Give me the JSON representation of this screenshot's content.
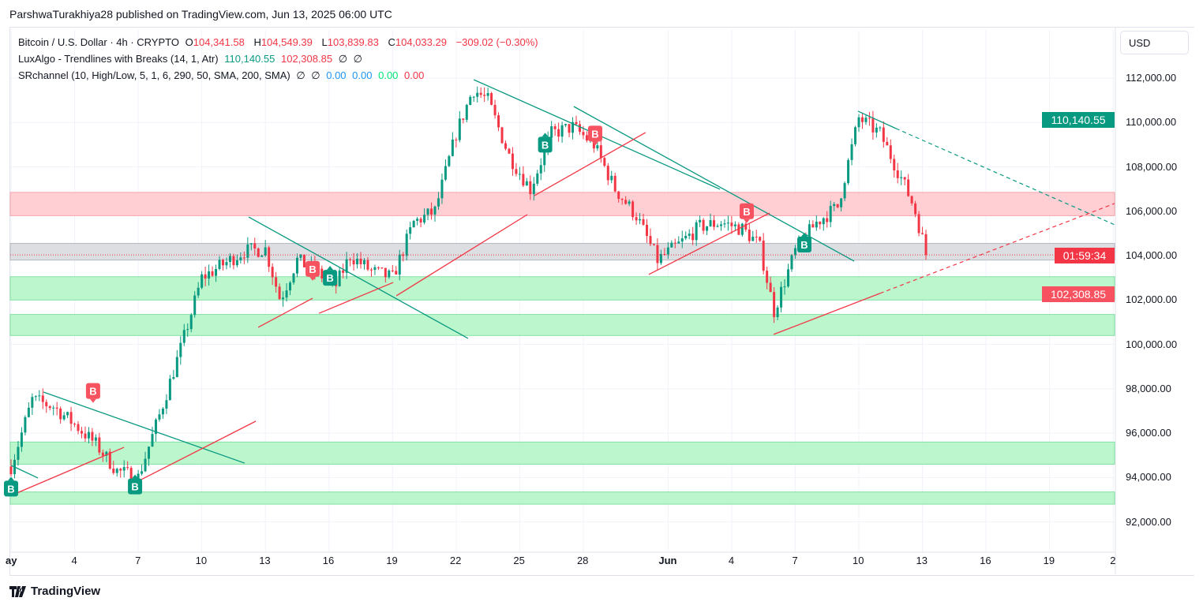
{
  "publisher_line": "ParshwaTurakhiya28 published on TradingView.com, Jun 13, 2025 06:00 UTC",
  "legend": {
    "symbol": "Bitcoin / U.S. Dollar · 4h · CRYPTO",
    "o_label": "O",
    "o": "104,341.58",
    "h_label": "H",
    "h": "104,549.39",
    "l_label": "L",
    "l": "103,839.83",
    "c_label": "C",
    "c": "104,033.29",
    "change": "−309.02 (−0.30%)",
    "ind1": "LuxAlgo - Trendlines with Breaks (14, 1, Atr)",
    "ind1_v1": "110,140.55",
    "ind1_v2": "102,308.85",
    "ind1_v3": "∅",
    "ind1_v4": "∅",
    "ind2": "SRchannel (10, High/Low, 5, 1, 6, 290, 50, SMA, 200, SMA)",
    "ind2_v1": "∅",
    "ind2_v2": "∅",
    "ind2_v3": "0.00",
    "ind2_v4": "0.00",
    "ind2_v5": "0.00",
    "ind2_v6": "0.00"
  },
  "currency": "USD",
  "price_axis": [
    "112,000.00",
    "110,000.00",
    "108,000.00",
    "106,000.00",
    "104,000.00",
    "102,000.00",
    "100,000.00",
    "98,000.00",
    "96,000.00",
    "94,000.00",
    "92,000.00"
  ],
  "price_axis_values": [
    112000,
    110000,
    108000,
    106000,
    104000,
    102000,
    100000,
    98000,
    96000,
    94000,
    92000
  ],
  "tags": {
    "upper_trend": "110,140.55",
    "countdown": "01:59:34",
    "lower_trend": "102,308.85"
  },
  "time_axis": [
    {
      "label": "ay",
      "day": 0
    },
    {
      "label": "4",
      "day": 3
    },
    {
      "label": "7",
      "day": 6
    },
    {
      "label": "10",
      "day": 9
    },
    {
      "label": "13",
      "day": 12
    },
    {
      "label": "16",
      "day": 15
    },
    {
      "label": "19",
      "day": 18
    },
    {
      "label": "22",
      "day": 21
    },
    {
      "label": "25",
      "day": 24
    },
    {
      "label": "28",
      "day": 27
    },
    {
      "label": "Jun",
      "day": 31
    },
    {
      "label": "4",
      "day": 34
    },
    {
      "label": "7",
      "day": 37
    },
    {
      "label": "10",
      "day": 40
    },
    {
      "label": "13",
      "day": 43
    },
    {
      "label": "16",
      "day": 46
    },
    {
      "label": "19",
      "day": 49
    },
    {
      "label": "2",
      "day": 52
    }
  ],
  "footer": {
    "brand": "TradingView"
  },
  "colors": {
    "up": "#089981",
    "down": "#f23645",
    "resistance": "#ffcdd2",
    "support": "#b9f6ca",
    "neutral": "#d1d4dc"
  },
  "chart_data": {
    "type": "candlestick",
    "title": "Bitcoin / U.S. Dollar · 4h",
    "x_unit": "days since May 1 2025",
    "ylim": [
      91000,
      114000
    ],
    "last_price": 104033.29,
    "path": [
      [
        0,
        94500
      ],
      [
        1,
        97500
      ],
      [
        2,
        97200
      ],
      [
        3,
        96400
      ],
      [
        4,
        95500
      ],
      [
        5,
        94300
      ],
      [
        6,
        94000
      ],
      [
        7,
        96800
      ],
      [
        8,
        99800
      ],
      [
        9,
        103000
      ],
      [
        10,
        103600
      ],
      [
        11,
        104200
      ],
      [
        12,
        104300
      ],
      [
        12.7,
        102000
      ],
      [
        13.5,
        103800
      ],
      [
        14.5,
        103200
      ],
      [
        15.3,
        102600
      ],
      [
        16,
        104000
      ],
      [
        17,
        103300
      ],
      [
        18,
        103000
      ],
      [
        19,
        105500
      ],
      [
        20,
        106000
      ],
      [
        21,
        109500
      ],
      [
        21.8,
        111500
      ],
      [
        22.5,
        111000
      ],
      [
        23.5,
        108500
      ],
      [
        24.5,
        107000
      ],
      [
        25.5,
        109500
      ],
      [
        26.5,
        109800
      ],
      [
        27.5,
        109000
      ],
      [
        28.5,
        107000
      ],
      [
        29.5,
        105800
      ],
      [
        30.5,
        103800
      ],
      [
        31.5,
        104500
      ],
      [
        32.5,
        105300
      ],
      [
        33.5,
        105500
      ],
      [
        34.5,
        105200
      ],
      [
        35.3,
        104500
      ],
      [
        36,
        101500
      ],
      [
        37,
        104200
      ],
      [
        38,
        105500
      ],
      [
        39,
        106200
      ],
      [
        40,
        110200
      ],
      [
        41,
        109500
      ],
      [
        42,
        107500
      ],
      [
        42.6,
        106200
      ],
      [
        43.2,
        104033
      ]
    ],
    "zones": [
      {
        "kind": "resistance",
        "from": 105800,
        "to": 106850
      },
      {
        "kind": "neutral",
        "from": 103800,
        "to": 104550
      },
      {
        "kind": "support",
        "from": 102000,
        "to": 103050
      },
      {
        "kind": "support",
        "from": 100400,
        "to": 101350
      },
      {
        "kind": "support",
        "from": 94600,
        "to": 95600
      },
      {
        "kind": "support",
        "from": 92800,
        "to": 93350
      }
    ],
    "trendlines": [
      {
        "color": "up",
        "pts": [
          [
            1.53,
            97850
          ],
          [
            11.02,
            94650
          ]
        ]
      },
      {
        "color": "up",
        "pts": [
          [
            0,
            94550
          ],
          [
            1.27,
            93980
          ]
        ]
      },
      {
        "color": "up",
        "pts": [
          [
            11.21,
            105740
          ],
          [
            21.56,
            100270
          ]
        ]
      },
      {
        "color": "up",
        "pts": [
          [
            21.83,
            111930
          ],
          [
            33.45,
            106990
          ]
        ]
      },
      {
        "color": "up",
        "pts": [
          [
            26.55,
            110720
          ],
          [
            39.78,
            103750
          ]
        ]
      },
      {
        "color": "up",
        "pts": [
          [
            39.96,
            110510
          ],
          [
            41.75,
            109730
          ]
        ],
        "ext": [
          52.07,
          105390
        ]
      },
      {
        "color": "down",
        "pts": [
          [
            0,
            93190
          ],
          [
            5.33,
            95360
          ]
        ]
      },
      {
        "color": "down",
        "pts": [
          [
            5.92,
            93800
          ],
          [
            11.55,
            96540
          ]
        ]
      },
      {
        "color": "down",
        "pts": [
          [
            11.66,
            100770
          ],
          [
            14.23,
            102080
          ]
        ]
      },
      {
        "color": "down",
        "pts": [
          [
            14.53,
            101400
          ],
          [
            18.03,
            102790
          ]
        ]
      },
      {
        "color": "down",
        "pts": [
          [
            18.18,
            102190
          ],
          [
            24.36,
            105850
          ]
        ]
      },
      {
        "color": "down",
        "pts": [
          [
            24.69,
            106700
          ],
          [
            29.94,
            109550
          ]
        ]
      },
      {
        "color": "down",
        "pts": [
          [
            30.09,
            103150
          ],
          [
            35.79,
            105920
          ]
        ]
      },
      {
        "color": "down",
        "pts": [
          [
            35.98,
            100450
          ],
          [
            41.0,
            102300
          ]
        ],
        "ext": [
          52.07,
          106350
        ]
      }
    ],
    "break_markers": [
      {
        "label": "B",
        "type": "down",
        "day": 3.87,
        "price": 97900
      },
      {
        "label": "B",
        "type": "down",
        "day": 14.23,
        "price": 103400
      },
      {
        "label": "B",
        "type": "down",
        "day": 27.56,
        "price": 109500
      },
      {
        "label": "B",
        "type": "down",
        "day": 34.71,
        "price": 106000
      },
      {
        "label": "B",
        "type": "up",
        "day": 0,
        "price": 93500
      },
      {
        "label": "B",
        "type": "up",
        "day": 5.85,
        "price": 93600
      },
      {
        "label": "B",
        "type": "up",
        "day": 15.05,
        "price": 103000
      },
      {
        "label": "B",
        "type": "up",
        "day": 25.2,
        "price": 109000
      },
      {
        "label": "B",
        "type": "up",
        "day": 37.43,
        "price": 104500
      }
    ]
  }
}
